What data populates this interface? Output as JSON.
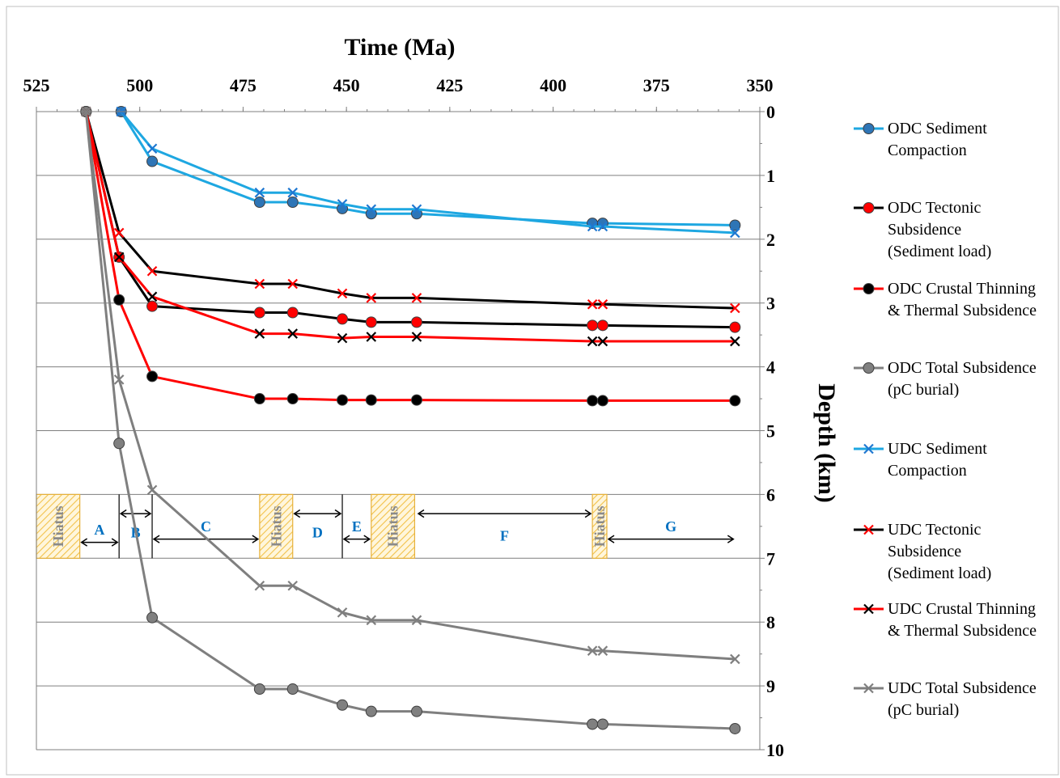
{
  "chart_data": {
    "type": "line",
    "title": "Time (Ma)",
    "xlabel": "Time (Ma)",
    "ylabel": "Depth (km)",
    "xlim": [
      525,
      350
    ],
    "ylim": [
      0,
      10
    ],
    "x_ticks": [
      "525",
      "500",
      "475",
      "450",
      "425",
      "400",
      "375",
      "350"
    ],
    "y_ticks": [
      "0",
      "1",
      "2",
      "3",
      "4",
      "5",
      "6",
      "7",
      "8",
      "9",
      "10"
    ],
    "grid": "horizontal",
    "legend": "right",
    "series": [
      {
        "name": "ODC Sediment Compaction",
        "legend_lines": [
          "ODC Sediment",
          "Compaction"
        ],
        "line_color": "#1ea7e1",
        "marker": "circle",
        "marker_fill": "#2e75b6",
        "x": [
          504.5,
          497,
          471,
          463,
          451,
          444,
          433,
          390.5,
          388,
          356
        ],
        "y": [
          0,
          0.78,
          1.42,
          1.42,
          1.52,
          1.6,
          1.6,
          1.75,
          1.75,
          1.78
        ]
      },
      {
        "name": "ODC Tectonic Subsidence (Sediment load)",
        "legend_lines": [
          "ODC Tectonic",
          "Subsidence",
          "(Sediment load)"
        ],
        "line_color": "#000000",
        "marker": "circle",
        "marker_fill": "#ff0000",
        "x": [
          513,
          505,
          497,
          471,
          463,
          451,
          444,
          433,
          390.5,
          388,
          356
        ],
        "y": [
          0,
          2.28,
          3.05,
          3.15,
          3.15,
          3.25,
          3.3,
          3.3,
          3.35,
          3.35,
          3.38
        ]
      },
      {
        "name": "ODC Crustal Thinning & Thermal Subsidence",
        "legend_lines": [
          "ODC Crustal Thinning",
          "& Thermal Subsidence"
        ],
        "line_color": "#ff0000",
        "marker": "circle",
        "marker_fill": "#000000",
        "x": [
          513,
          505,
          497,
          471,
          463,
          451,
          444,
          433,
          390.5,
          388,
          356
        ],
        "y": [
          0,
          2.95,
          4.15,
          4.5,
          4.5,
          4.52,
          4.52,
          4.52,
          4.53,
          4.53,
          4.53
        ]
      },
      {
        "name": "ODC Total Subsidence (pC burial)",
        "legend_lines": [
          "ODC Total Subsidence",
          "(pC burial)"
        ],
        "line_color": "#7f7f7f",
        "marker": "circle",
        "marker_fill": "#808080",
        "x": [
          513,
          505,
          497,
          471,
          463,
          451,
          444,
          433,
          390.5,
          388,
          356
        ],
        "y": [
          0,
          5.2,
          7.93,
          9.05,
          9.05,
          9.3,
          9.4,
          9.4,
          9.6,
          9.6,
          9.67
        ]
      },
      {
        "name": "UDC Sediment Compaction",
        "legend_lines": [
          "UDC Sediment",
          "Compaction"
        ],
        "line_color": "#1ea7e1",
        "marker": "x",
        "marker_fill": "#1f78d1",
        "x": [
          504.5,
          497,
          471,
          463,
          451,
          444,
          433,
          390.5,
          388,
          356
        ],
        "y": [
          0,
          0.58,
          1.27,
          1.27,
          1.45,
          1.53,
          1.53,
          1.8,
          1.8,
          1.9
        ]
      },
      {
        "name": "UDC Tectonic Subsidence (Sediment load)",
        "legend_lines": [
          "UDC Tectonic",
          "Subsidence",
          "(Sediment load)"
        ],
        "line_color": "#000000",
        "marker": "x",
        "marker_fill": "#ff0000",
        "x": [
          513,
          505,
          497,
          471,
          463,
          451,
          444,
          433,
          390.5,
          388,
          356
        ],
        "y": [
          0,
          1.9,
          2.5,
          2.7,
          2.7,
          2.85,
          2.92,
          2.92,
          3.02,
          3.02,
          3.08
        ]
      },
      {
        "name": "UDC Crustal Thinning & Thermal Subsidence",
        "legend_lines": [
          "UDC Crustal Thinning",
          "& Thermal Subsidence"
        ],
        "line_color": "#ff0000",
        "marker": "x",
        "marker_fill": "#000000",
        "x": [
          513,
          505,
          497,
          471,
          463,
          451,
          444,
          433,
          390.5,
          388,
          356
        ],
        "y": [
          0,
          2.28,
          2.9,
          3.48,
          3.48,
          3.55,
          3.53,
          3.53,
          3.6,
          3.6,
          3.6
        ]
      },
      {
        "name": "UDC Total Subsidence (pC burial)",
        "legend_lines": [
          "UDC Total Subsidence",
          "(pC burial)"
        ],
        "line_color": "#7f7f7f",
        "marker": "x",
        "marker_fill": "#7f7f7f",
        "x": [
          513,
          505,
          497,
          471,
          463,
          451,
          444,
          433,
          390.5,
          388,
          356
        ],
        "y": [
          0,
          4.2,
          5.93,
          7.43,
          7.43,
          7.85,
          7.97,
          7.97,
          8.45,
          8.45,
          8.58
        ]
      }
    ],
    "annotations": {
      "hiatus_label": "Hiatus",
      "hiatus_spans": [
        {
          "x": [
            525,
            514.5
          ]
        },
        {
          "x": [
            471,
            463
          ]
        },
        {
          "x": [
            444,
            433.5
          ]
        },
        {
          "x": [
            390.5,
            387
          ]
        }
      ],
      "hiatus_y": [
        6,
        7
      ],
      "dividers_x": [
        505,
        497,
        451
      ],
      "intervals": [
        {
          "label": "A",
          "x": [
            514.5,
            505
          ],
          "arrow_y": 6.75,
          "label_y": 6.55
        },
        {
          "label": "B",
          "x": [
            505,
            497
          ],
          "arrow_y": 6.3,
          "label_y": 6.6
        },
        {
          "label": "C",
          "x": [
            497,
            471
          ],
          "arrow_y": 6.7,
          "label_y": 6.5
        },
        {
          "label": "D",
          "x": [
            463,
            451
          ],
          "arrow_y": 6.3,
          "label_y": 6.6
        },
        {
          "label": "E",
          "x": [
            451,
            444
          ],
          "arrow_y": 6.7,
          "label_y": 6.5
        },
        {
          "label": "F",
          "x": [
            433,
            390.5
          ],
          "arrow_y": 6.3,
          "label_y": 6.65
        },
        {
          "label": "G",
          "x": [
            387,
            356
          ],
          "arrow_y": 6.7,
          "label_y": 6.5
        }
      ]
    }
  }
}
